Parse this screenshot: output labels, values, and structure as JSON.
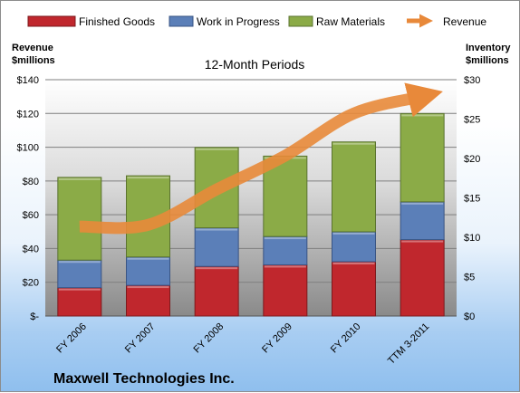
{
  "legend": {
    "finished_goods": "Finished Goods",
    "work_in_progress": "Work in Progress",
    "raw_materials": "Raw Materials",
    "revenue": "Revenue"
  },
  "axes": {
    "left_title_line1": "Revenue",
    "left_title_line2": "$millions",
    "right_title_line1": "Inventory",
    "right_title_line2": "$millions"
  },
  "plot_title": "12-Month Periods",
  "company": "Maxwell Technologies Inc.",
  "colors": {
    "finished_goods": "#c0272d",
    "work_in_progress": "#5b7fb8",
    "raw_materials": "#8bab47",
    "revenue": "#e8893a"
  },
  "chart_data": {
    "type": "bar",
    "subtype": "stacked bar with line overlay",
    "title": "12-Month Periods",
    "categories": [
      "FY 2006",
      "FY 2007",
      "FY 2008",
      "FY 2009",
      "FY 2010",
      "TTM 3-2011"
    ],
    "left_axis": {
      "label": "Revenue $millions",
      "range": [
        0,
        140
      ],
      "ticks": [
        "$-",
        "$20",
        "$40",
        "$60",
        "$80",
        "$100",
        "$120",
        "$140"
      ]
    },
    "right_axis": {
      "label": "Inventory $millions",
      "range": [
        0,
        30
      ],
      "ticks": [
        "$0",
        "$5",
        "$10",
        "$15",
        "$20",
        "$25",
        "$30"
      ]
    },
    "series": [
      {
        "name": "Finished Goods",
        "axis": "right",
        "values": [
          3.6,
          3.9,
          6.3,
          6.5,
          6.9,
          9.7
        ]
      },
      {
        "name": "Work in Progress",
        "axis": "right",
        "values": [
          3.5,
          3.6,
          4.9,
          3.6,
          3.8,
          4.8
        ]
      },
      {
        "name": "Raw Materials",
        "axis": "right",
        "values": [
          10.5,
          10.3,
          10.2,
          10.2,
          11.4,
          11.2
        ]
      },
      {
        "name": "Revenue",
        "axis": "left",
        "type": "line",
        "values": [
          53,
          54,
          75,
          95,
          120,
          130
        ]
      }
    ],
    "grid": true,
    "legend_position": "top"
  }
}
